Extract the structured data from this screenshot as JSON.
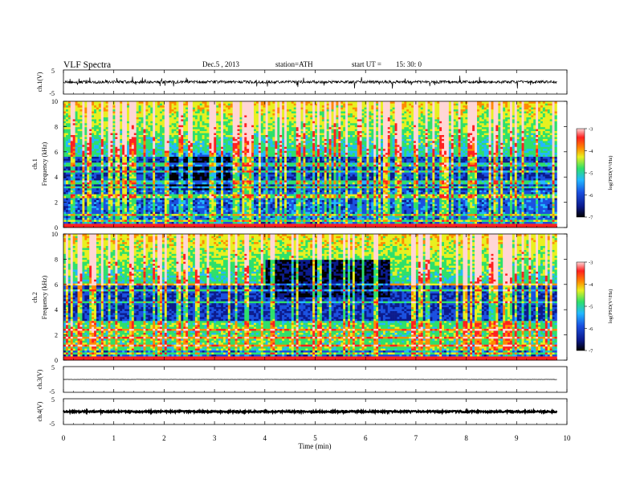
{
  "header": {
    "title": "VLF  Spectra",
    "date": "Dec.5  , 2013",
    "station": "station=ATH",
    "start_label": "start  UT  =",
    "start_time": "15: 30: 0"
  },
  "chart_data": [
    {
      "id": "ch1-waveform",
      "type": "line",
      "ylabel": "ch.1(V)",
      "ylim": [
        -5,
        5
      ],
      "yticks": [
        "5",
        "-5"
      ],
      "baseline": 0,
      "noise_amplitude": 0.6,
      "color": "#000000"
    },
    {
      "id": "ch1-spectrogram",
      "type": "heatmap",
      "ylabel_line1": "ch.1",
      "ylabel_line2": "Frequency  (kHz)",
      "ylim": [
        0,
        10
      ],
      "yticks": [
        "0",
        "2",
        "4",
        "6",
        "8",
        "10"
      ],
      "colorbar": {
        "label": "log(PSD(V²/Hz)",
        "range": [
          -7,
          -3
        ],
        "ticks": [
          "-3",
          "-4",
          "-5",
          "-6",
          "-7"
        ]
      },
      "colormap": [
        "#000000",
        "#0b1a8c",
        "#1a50e0",
        "#22b8ff",
        "#2ee06a",
        "#e8f020",
        "#ff8a00",
        "#ff2020",
        "#ffd6d6"
      ],
      "data_extent_min": 9.8,
      "notable_bands_khz": [
        0.5,
        1.0,
        2.5,
        3.2,
        3.6,
        4.4,
        5.0,
        5.8
      ]
    },
    {
      "id": "ch2-spectrogram",
      "type": "heatmap",
      "ylabel_line1": "ch.2",
      "ylabel_line2": "Frequency  (kHz)",
      "ylim": [
        0,
        10
      ],
      "yticks": [
        "0",
        "2",
        "4",
        "6",
        "8",
        "10"
      ],
      "colorbar": {
        "label": "log(PSD(V²/Hz)",
        "range": [
          -7,
          -3
        ],
        "ticks": [
          "-3",
          "-4",
          "-5",
          "-6",
          "-7"
        ]
      },
      "data_extent_min": 9.8,
      "notable_bands_khz": [
        0.6,
        1.2,
        1.8,
        2.4,
        3.0,
        4.6,
        5.6,
        6.0
      ]
    },
    {
      "id": "ch3-waveform",
      "type": "line",
      "ylabel": "ch.3(V)",
      "ylim": [
        -5,
        5
      ],
      "yticks": [
        "5",
        "-5"
      ],
      "baseline": 0,
      "noise_amplitude": 0.05,
      "color": "#000000"
    },
    {
      "id": "ch4-waveform",
      "type": "line",
      "ylabel": "ch.4(V)",
      "ylim": [
        -5,
        5
      ],
      "yticks": [
        "5",
        "-5"
      ],
      "baseline": 0,
      "noise_amplitude": 0.3,
      "color": "#000000"
    }
  ],
  "x_axis": {
    "label": "Time  (min)",
    "range": [
      0,
      10
    ],
    "ticks": [
      "0",
      "1",
      "2",
      "3",
      "4",
      "5",
      "6",
      "7",
      "8",
      "9",
      "10"
    ]
  }
}
